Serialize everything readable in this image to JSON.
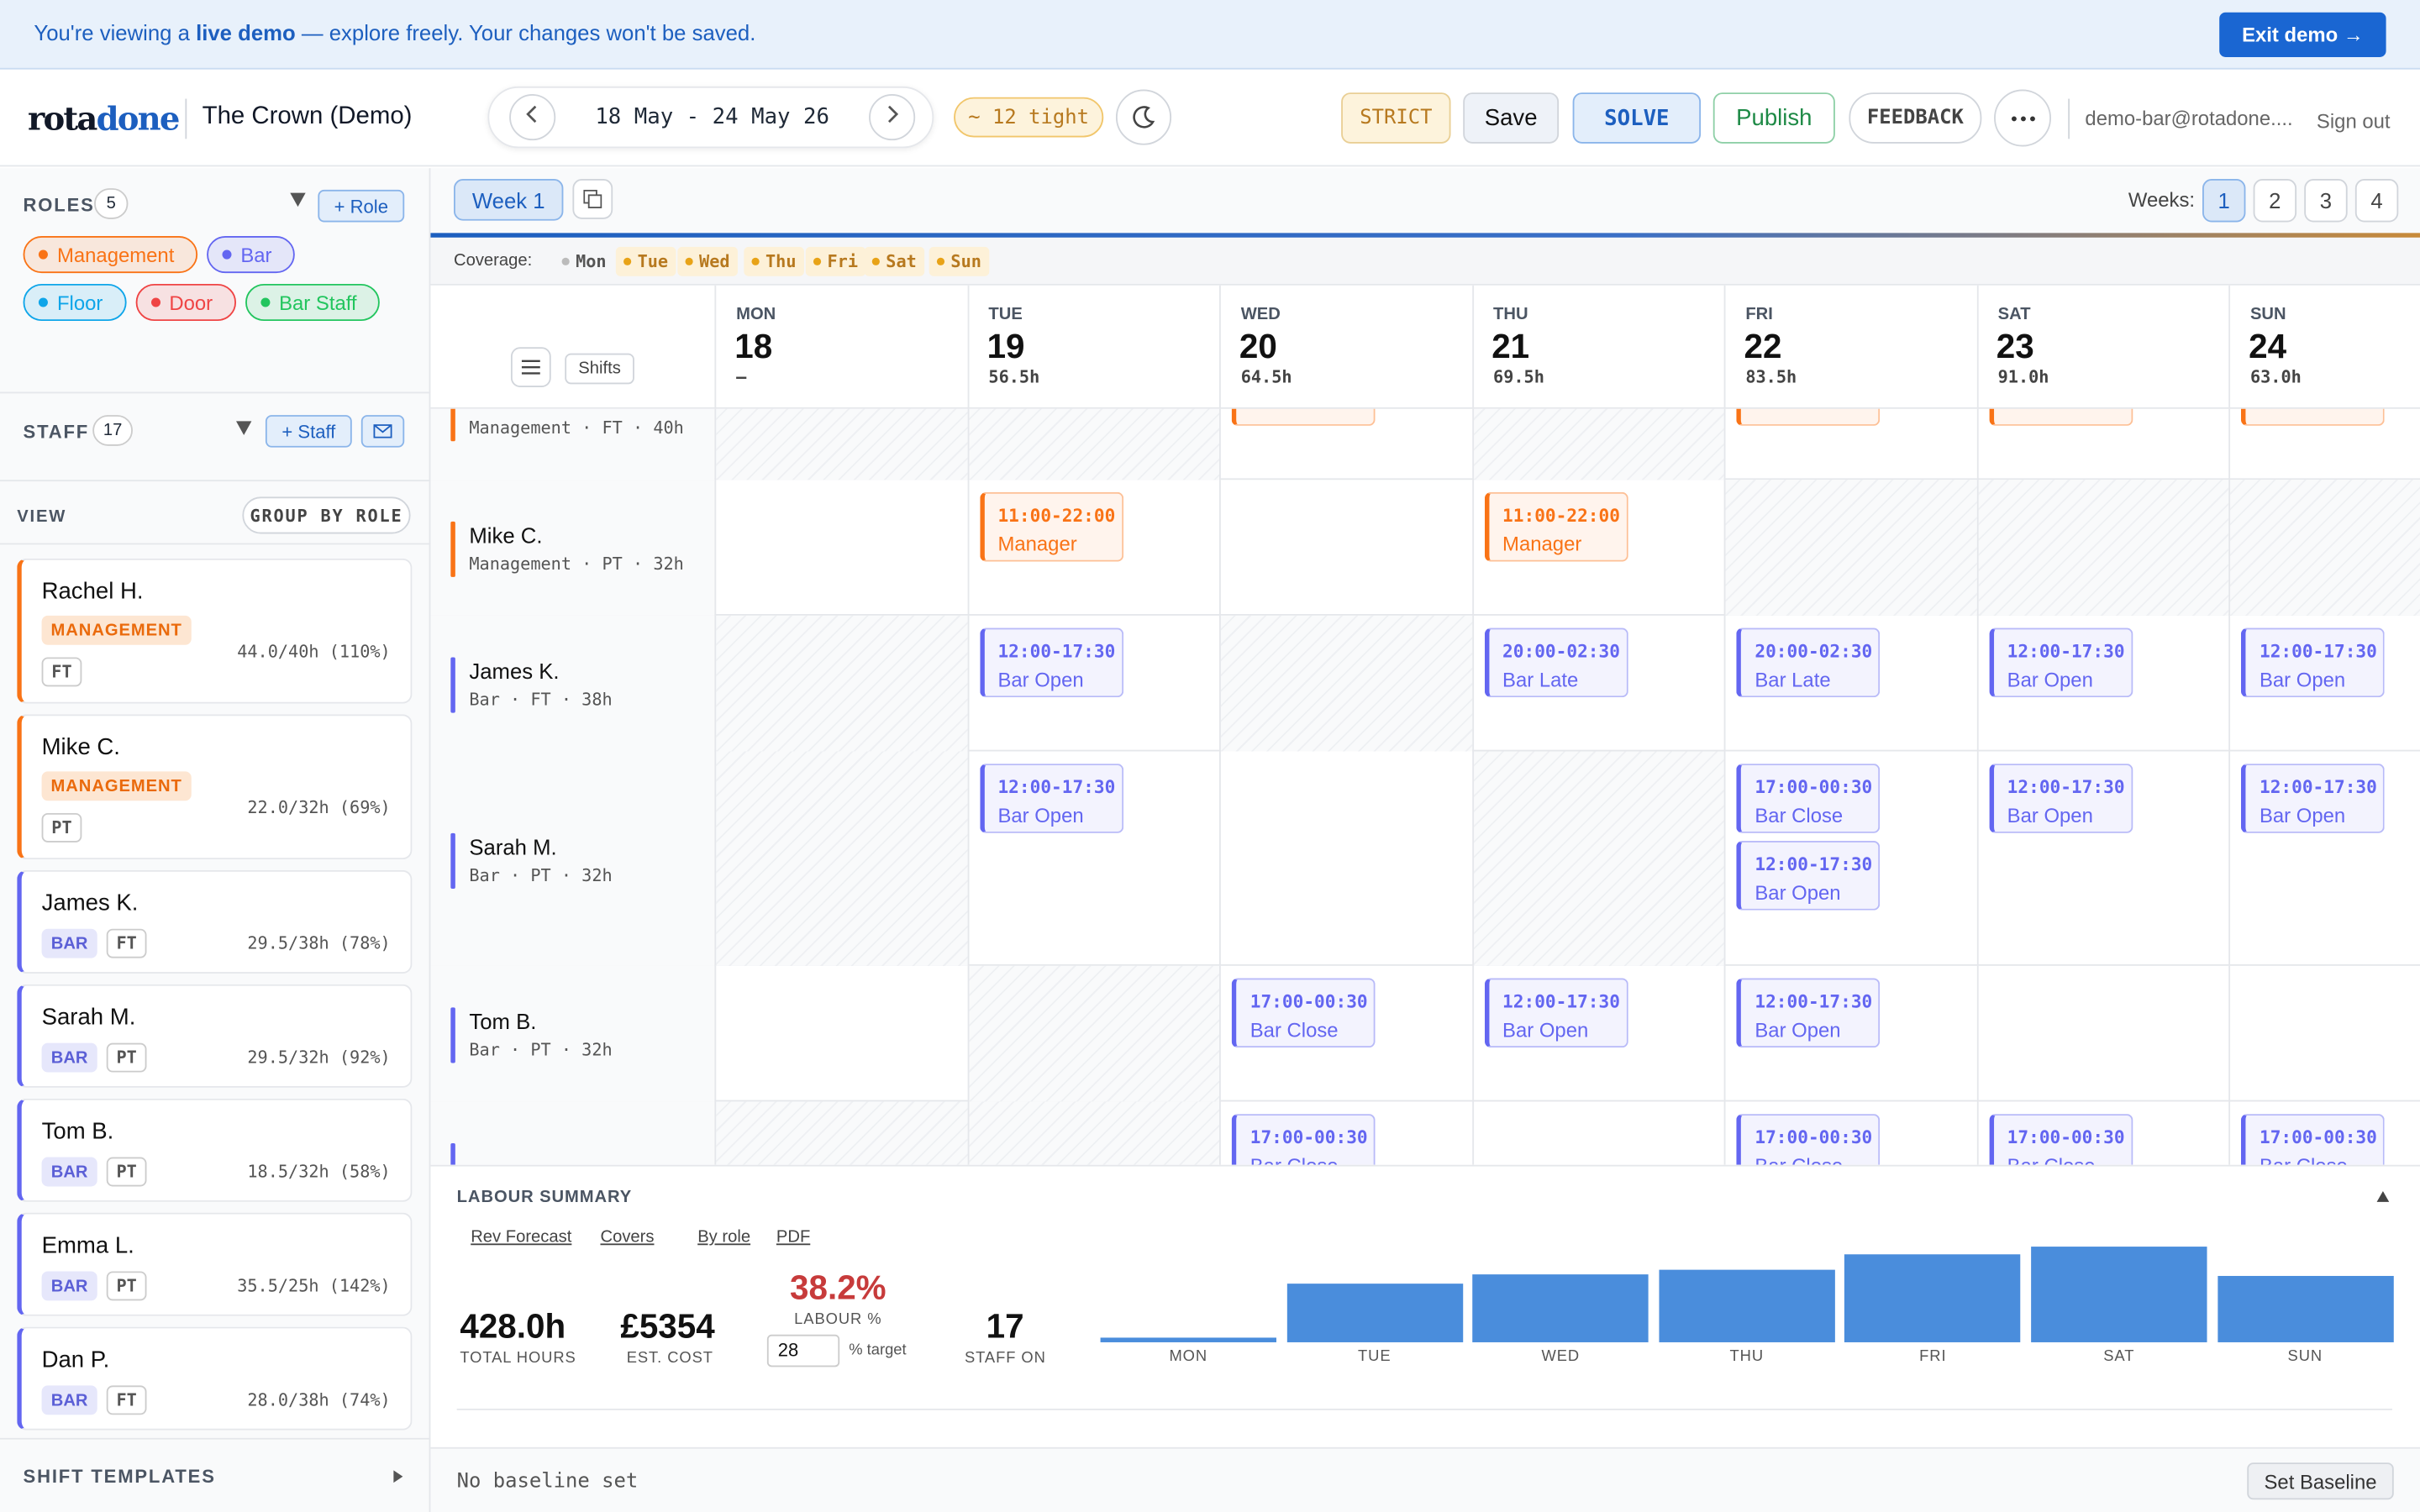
{
  "banner": {
    "lead": "You're viewing a",
    "bold": "live demo",
    "rest": "— explore freely. Your changes won't be saved.",
    "exit": "Exit demo →"
  },
  "header": {
    "logo_a": "rota",
    "logo_b": "done",
    "venue": "The Crown (Demo)",
    "date_range": "18 May - 24 May 26",
    "tight": "~ 12 tight",
    "strict": "STRICT",
    "save": "Save",
    "solve": "SOLVE",
    "publish": "Publish",
    "feedback": "FEEDBACK",
    "user": "demo-bar@rotadone....",
    "sign_out": "Sign out"
  },
  "sidebar": {
    "roles_label": "ROLES",
    "roles_count": 5,
    "add_role": "+ Role",
    "roles": [
      {
        "name": "Management",
        "color": "#f97316"
      },
      {
        "name": "Bar",
        "color": "#6366f1"
      },
      {
        "name": "Floor",
        "color": "#0ea5e9"
      },
      {
        "name": "Door",
        "color": "#ef4444"
      },
      {
        "name": "Bar Staff",
        "color": "#22c55e"
      }
    ],
    "staff_label": "STAFF",
    "staff_count": 17,
    "add_staff": "+ Staff",
    "view_label": "VIEW",
    "group_by": "GROUP BY ROLE",
    "staff": [
      {
        "name": "Rachel H.",
        "role": "MANAGEMENT",
        "type": "FT",
        "hours": "44.0/40h (110%)",
        "color": "#f97316"
      },
      {
        "name": "Mike C.",
        "role": "MANAGEMENT",
        "type": "PT",
        "hours": "22.0/32h (69%)",
        "color": "#f97316"
      },
      {
        "name": "James K.",
        "role": "BAR",
        "type": "FT",
        "hours": "29.5/38h (78%)",
        "color": "#6366f1"
      },
      {
        "name": "Sarah M.",
        "role": "BAR",
        "type": "PT",
        "hours": "29.5/32h (92%)",
        "color": "#6366f1"
      },
      {
        "name": "Tom B.",
        "role": "BAR",
        "type": "PT",
        "hours": "18.5/32h (58%)",
        "color": "#6366f1"
      },
      {
        "name": "Emma L.",
        "role": "BAR",
        "type": "PT",
        "hours": "35.5/25h (142%)",
        "color": "#6366f1"
      },
      {
        "name": "Dan P.",
        "role": "BAR",
        "type": "FT",
        "hours": "28.0/38h (74%)",
        "color": "#6366f1"
      }
    ],
    "templates": "SHIFT TEMPLATES"
  },
  "toolbar": {
    "week_tab": "Week 1",
    "weeks_label": "Weeks:",
    "weeks": [
      1,
      2,
      3,
      4
    ]
  },
  "coverage": {
    "label": "Coverage:",
    "days": [
      "Mon",
      "Tue",
      "Wed",
      "Thu",
      "Fri",
      "Sat",
      "Sun"
    ]
  },
  "grid": {
    "shifts": "Shifts",
    "days": [
      {
        "dow": "MON",
        "date": 18,
        "hours": "–"
      },
      {
        "dow": "TUE",
        "date": 19,
        "hours": "56.5h"
      },
      {
        "dow": "WED",
        "date": 20,
        "hours": "64.5h"
      },
      {
        "dow": "THU",
        "date": 21,
        "hours": "69.5h"
      },
      {
        "dow": "FRI",
        "date": 22,
        "hours": "83.5h"
      },
      {
        "dow": "SAT",
        "date": 23,
        "hours": "91.0h"
      },
      {
        "dow": "SUN",
        "date": 24,
        "hours": "63.0h"
      }
    ],
    "rows": [
      {
        "meta": "Management · FT · 40h",
        "color": "#f97316",
        "cells": [
          {
            "off": true,
            "shifts": []
          },
          {
            "off": true,
            "shifts": []
          },
          {
            "shifts": [
              {
                "partial": true
              }
            ]
          },
          {
            "off": true,
            "shifts": []
          },
          {
            "shifts": [
              {
                "partial": true
              }
            ]
          },
          {
            "shifts": [
              {
                "partial": true
              }
            ]
          },
          {
            "shifts": [
              {
                "partial": true
              }
            ]
          }
        ]
      },
      {
        "name": "Mike C.",
        "meta": "Management · PT · 32h",
        "color": "#f97316",
        "cells": [
          {
            "shifts": []
          },
          {
            "shifts": [
              {
                "time": "11:00-22:00",
                "label": "Manager"
              }
            ]
          },
          {
            "shifts": []
          },
          {
            "shifts": [
              {
                "time": "11:00-22:00",
                "label": "Manager"
              }
            ]
          },
          {
            "off": true,
            "shifts": []
          },
          {
            "off": true,
            "shifts": []
          },
          {
            "off": true,
            "shifts": []
          }
        ]
      },
      {
        "name": "James K.",
        "meta": "Bar · FT · 38h",
        "color": "#6366f1",
        "cells": [
          {
            "off": true,
            "shifts": []
          },
          {
            "shifts": [
              {
                "time": "12:00-17:30",
                "label": "Bar Open"
              }
            ]
          },
          {
            "off": true,
            "shifts": []
          },
          {
            "shifts": [
              {
                "time": "20:00-02:30",
                "label": "Bar Late"
              }
            ]
          },
          {
            "shifts": [
              {
                "time": "20:00-02:30",
                "label": "Bar Late"
              }
            ]
          },
          {
            "shifts": [
              {
                "time": "12:00-17:30",
                "label": "Bar Open"
              }
            ]
          },
          {
            "shifts": [
              {
                "time": "12:00-17:30",
                "label": "Bar Open"
              }
            ]
          }
        ]
      },
      {
        "name": "Sarah M.",
        "meta": "Bar · PT · 32h",
        "color": "#6366f1",
        "cells": [
          {
            "off": true,
            "shifts": []
          },
          {
            "shifts": [
              {
                "time": "12:00-17:30",
                "label": "Bar Open"
              }
            ]
          },
          {
            "shifts": []
          },
          {
            "off": true,
            "shifts": []
          },
          {
            "shifts": [
              {
                "time": "17:00-00:30",
                "label": "Bar Close"
              },
              {
                "time": "12:00-17:30",
                "label": "Bar Open"
              }
            ]
          },
          {
            "shifts": [
              {
                "time": "12:00-17:30",
                "label": "Bar Open"
              }
            ]
          },
          {
            "shifts": [
              {
                "time": "12:00-17:30",
                "label": "Bar Open"
              }
            ]
          }
        ]
      },
      {
        "name": "Tom B.",
        "meta": "Bar · PT · 32h",
        "color": "#6366f1",
        "cells": [
          {
            "shifts": []
          },
          {
            "off": true,
            "shifts": []
          },
          {
            "shifts": [
              {
                "time": "17:00-00:30",
                "label": "Bar Close"
              }
            ]
          },
          {
            "shifts": [
              {
                "time": "12:00-17:30",
                "label": "Bar Open"
              }
            ]
          },
          {
            "shifts": [
              {
                "time": "12:00-17:30",
                "label": "Bar Open"
              }
            ]
          },
          {
            "shifts": []
          },
          {
            "shifts": []
          }
        ]
      },
      {
        "color": "#6366f1",
        "cells": [
          {
            "off": true,
            "shifts": []
          },
          {
            "off": true,
            "shifts": []
          },
          {
            "shifts": [
              {
                "time": "17:00-00:30",
                "label": "Bar Close"
              }
            ]
          },
          {
            "shifts": []
          },
          {
            "shifts": [
              {
                "time": "17:00-00:30",
                "label": "Bar Close"
              }
            ]
          },
          {
            "shifts": [
              {
                "time": "17:00-00:30",
                "label": "Bar Close"
              }
            ]
          },
          {
            "shifts": [
              {
                "time": "17:00-00:30",
                "label": "Bar Close"
              }
            ]
          }
        ]
      }
    ]
  },
  "summary": {
    "title": "LABOUR SUMMARY",
    "tabs": [
      "Rev Forecast",
      "Covers",
      "By role",
      "PDF"
    ],
    "hours": "428.0h",
    "hours_label": "TOTAL HOURS",
    "cost": "£5354",
    "cost_label": "EST. COST",
    "labour": "38.2%",
    "labour_label": "LABOUR %",
    "target": 28,
    "target_label": "% target",
    "staff_on": 17,
    "staff_on_label": "STAFF ON",
    "chart": {
      "type": "bar",
      "categories": [
        "MON",
        "TUE",
        "WED",
        "THU",
        "FRI",
        "SAT",
        "SUN"
      ],
      "values": [
        0,
        56.5,
        64.5,
        69.5,
        83.5,
        91.0,
        63.0
      ],
      "color": "#4a8ddc"
    }
  },
  "footer": {
    "baseline": "No baseline set",
    "set_baseline": "Set Baseline"
  }
}
